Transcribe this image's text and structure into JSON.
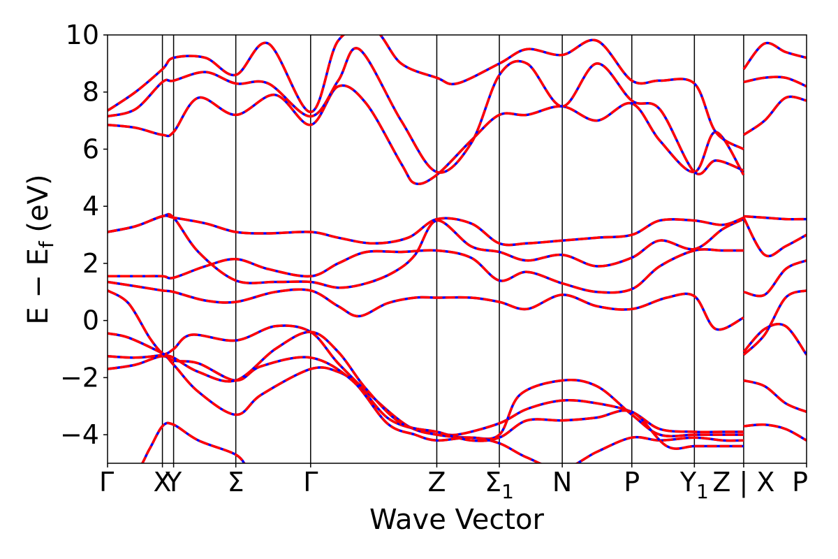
{
  "chart_data": {
    "type": "line",
    "title": "",
    "xlabel": "Wave Vector",
    "ylabel": "E − E",
    "ylabel_sub": "f",
    "ylabel_unit": " (eV)",
    "ylim": [
      -5,
      10
    ],
    "xlim": [
      0,
      1
    ],
    "yticks": [
      -4,
      -2,
      0,
      2,
      4,
      6,
      8,
      10
    ],
    "ytick_labels": [
      "−4",
      "−2",
      "0",
      "2",
      "4",
      "6",
      "8",
      "10"
    ],
    "kpoints": [
      {
        "label": "Γ",
        "sub": "",
        "x": 0.0
      },
      {
        "label": "X",
        "sub": "",
        "x": 0.0785
      },
      {
        "label": "Y",
        "sub": "",
        "x": 0.0945
      },
      {
        "label": "Σ",
        "sub": "",
        "x": 0.1835
      },
      {
        "label": "Γ",
        "sub": "",
        "x": 0.2905
      },
      {
        "label": "Z",
        "sub": "",
        "x": 0.471
      },
      {
        "label": "Σ",
        "sub": "1",
        "x": 0.5605
      },
      {
        "label": "N",
        "sub": "",
        "x": 0.6505
      },
      {
        "label": "P",
        "sub": "",
        "x": 0.75
      },
      {
        "label": "Y",
        "sub": "1",
        "x": 0.8395
      },
      {
        "label": "Z | X",
        "sub": "",
        "x": 0.91
      },
      {
        "label": "P",
        "sub": "",
        "x": 1.0
      }
    ],
    "grid": false,
    "legend": "none",
    "series_colors": {
      "overlay": "#ff0000",
      "underlay": "#0000ff"
    },
    "bands": [
      [
        [
          0,
          -5.6
        ],
        [
          0.04,
          -5.3
        ],
        [
          0.06,
          -4.5
        ],
        [
          0.0785,
          -3.7
        ],
        [
          0.0945,
          -3.65
        ],
        [
          0.13,
          -4.2
        ],
        [
          0.1835,
          -4.7
        ],
        [
          0.2,
          -5.2
        ]
      ],
      [
        [
          0,
          -1.7
        ],
        [
          0.04,
          -1.55
        ],
        [
          0.0785,
          -1.25
        ],
        [
          0.0945,
          -1.55
        ],
        [
          0.13,
          -2.5
        ],
        [
          0.1835,
          -3.3
        ],
        [
          0.22,
          -2.6
        ],
        [
          0.2905,
          -1.7
        ],
        [
          0.33,
          -1.8
        ],
        [
          0.36,
          -2.3
        ],
        [
          0.4,
          -3.4
        ],
        [
          0.44,
          -3.8
        ],
        [
          0.471,
          -3.9
        ],
        [
          0.5,
          -4.0
        ],
        [
          0.5605,
          -3.6
        ],
        [
          0.6,
          -3.1
        ],
        [
          0.6505,
          -2.8
        ],
        [
          0.7,
          -2.9
        ],
        [
          0.75,
          -3.2
        ],
        [
          0.79,
          -3.8
        ],
        [
          0.8395,
          -3.9
        ],
        [
          0.88,
          -3.9
        ],
        [
          0.91,
          -3.9
        ]
      ],
      [
        [
          0,
          -1.25
        ],
        [
          0.04,
          -1.3
        ],
        [
          0.0785,
          -1.2
        ],
        [
          0.0945,
          -1.0
        ],
        [
          0.12,
          -0.5
        ],
        [
          0.1835,
          -0.7
        ],
        [
          0.24,
          -0.2
        ],
        [
          0.2905,
          -0.4
        ],
        [
          0.33,
          -1.5
        ],
        [
          0.38,
          -2.7
        ],
        [
          0.43,
          -3.7
        ],
        [
          0.471,
          -4.0
        ],
        [
          0.52,
          -4.1
        ],
        [
          0.5605,
          -4.0
        ],
        [
          0.59,
          -2.6
        ],
        [
          0.6505,
          -2.1
        ],
        [
          0.7,
          -2.3
        ],
        [
          0.75,
          -3.3
        ],
        [
          0.79,
          -4.0
        ],
        [
          0.8395,
          -4.0
        ],
        [
          0.88,
          -4.0
        ],
        [
          0.91,
          -4.0
        ]
      ],
      [
        [
          0,
          -0.45
        ],
        [
          0.03,
          -0.6
        ],
        [
          0.0785,
          -1.15
        ],
        [
          0.0945,
          -1.4
        ],
        [
          0.13,
          -1.5
        ],
        [
          0.1835,
          -2.1
        ],
        [
          0.22,
          -1.6
        ],
        [
          0.2905,
          -1.3
        ],
        [
          0.35,
          -2.1
        ],
        [
          0.4,
          -3.6
        ],
        [
          0.44,
          -4.0
        ],
        [
          0.471,
          -4.2
        ],
        [
          0.52,
          -4.1
        ],
        [
          0.5605,
          -4.3
        ],
        [
          0.6,
          -4.8
        ],
        [
          0.6505,
          -5.2
        ],
        [
          0.7,
          -4.6
        ],
        [
          0.75,
          -4.1
        ],
        [
          0.79,
          -4.2
        ],
        [
          0.8395,
          -4.1
        ],
        [
          0.88,
          -4.2
        ],
        [
          0.91,
          -4.2
        ]
      ],
      [
        [
          0,
          1.05
        ],
        [
          0.03,
          0.6
        ],
        [
          0.06,
          -0.6
        ],
        [
          0.0785,
          -1.15
        ],
        [
          0.0945,
          -1.3
        ],
        [
          0.13,
          -1.8
        ],
        [
          0.1835,
          -2.1
        ],
        [
          0.24,
          -1.0
        ],
        [
          0.2905,
          -0.4
        ],
        [
          0.33,
          -1.1
        ],
        [
          0.37,
          -2.4
        ],
        [
          0.42,
          -3.6
        ],
        [
          0.471,
          -3.9
        ],
        [
          0.52,
          -4.2
        ],
        [
          0.5605,
          -4.1
        ],
        [
          0.6,
          -3.5
        ],
        [
          0.6505,
          -3.5
        ],
        [
          0.7,
          -3.4
        ],
        [
          0.75,
          -3.2
        ],
        [
          0.8,
          -4.4
        ],
        [
          0.8395,
          -4.4
        ],
        [
          0.88,
          -4.4
        ],
        [
          0.91,
          -4.4
        ]
      ],
      [
        [
          0,
          1.35
        ],
        [
          0.04,
          1.2
        ],
        [
          0.0785,
          1.05
        ],
        [
          0.0945,
          1.0
        ],
        [
          0.14,
          0.7
        ],
        [
          0.1835,
          0.65
        ],
        [
          0.24,
          1.0
        ],
        [
          0.2905,
          1.05
        ],
        [
          0.33,
          0.5
        ],
        [
          0.36,
          0.15
        ],
        [
          0.4,
          0.6
        ],
        [
          0.44,
          0.8
        ],
        [
          0.471,
          0.8
        ],
        [
          0.52,
          0.8
        ],
        [
          0.5605,
          0.65
        ],
        [
          0.6,
          0.4
        ],
        [
          0.6505,
          0.9
        ],
        [
          0.7,
          0.5
        ],
        [
          0.75,
          0.4
        ],
        [
          0.8,
          0.8
        ],
        [
          0.8395,
          0.85
        ],
        [
          0.87,
          -0.3
        ],
        [
          0.91,
          0.1
        ]
      ],
      [
        [
          0,
          1.55
        ],
        [
          0.04,
          1.55
        ],
        [
          0.0785,
          1.55
        ],
        [
          0.0945,
          1.5
        ],
        [
          0.14,
          1.9
        ],
        [
          0.1835,
          2.15
        ],
        [
          0.23,
          1.8
        ],
        [
          0.2905,
          1.55
        ],
        [
          0.33,
          2.0
        ],
        [
          0.37,
          2.4
        ],
        [
          0.42,
          2.4
        ],
        [
          0.471,
          2.45
        ],
        [
          0.52,
          2.2
        ],
        [
          0.5605,
          1.4
        ],
        [
          0.6,
          1.7
        ],
        [
          0.6505,
          1.3
        ],
        [
          0.7,
          1.0
        ],
        [
          0.75,
          1.1
        ],
        [
          0.79,
          1.9
        ],
        [
          0.8395,
          2.45
        ],
        [
          0.88,
          2.45
        ],
        [
          0.91,
          2.45
        ]
      ],
      [
        [
          0,
          3.1
        ],
        [
          0.04,
          3.3
        ],
        [
          0.0785,
          3.65
        ],
        [
          0.0945,
          3.6
        ],
        [
          0.13,
          2.4
        ],
        [
          0.1835,
          1.4
        ],
        [
          0.24,
          1.35
        ],
        [
          0.2905,
          1.35
        ],
        [
          0.33,
          1.15
        ],
        [
          0.37,
          1.3
        ],
        [
          0.41,
          1.7
        ],
        [
          0.44,
          2.3
        ],
        [
          0.471,
          3.5
        ],
        [
          0.52,
          2.6
        ],
        [
          0.5605,
          2.4
        ],
        [
          0.6,
          2.1
        ],
        [
          0.6505,
          2.3
        ],
        [
          0.7,
          1.9
        ],
        [
          0.75,
          2.2
        ],
        [
          0.79,
          2.8
        ],
        [
          0.8395,
          2.5
        ],
        [
          0.88,
          3.2
        ],
        [
          0.91,
          3.55
        ]
      ],
      [
        [
          0,
          3.1
        ],
        [
          0.04,
          3.3
        ],
        [
          0.0785,
          3.65
        ],
        [
          0.0945,
          3.6
        ],
        [
          0.14,
          3.4
        ],
        [
          0.1835,
          3.1
        ],
        [
          0.23,
          3.05
        ],
        [
          0.2905,
          3.1
        ],
        [
          0.33,
          2.9
        ],
        [
          0.38,
          2.7
        ],
        [
          0.43,
          2.9
        ],
        [
          0.471,
          3.55
        ],
        [
          0.52,
          3.4
        ],
        [
          0.5605,
          2.7
        ],
        [
          0.6,
          2.7
        ],
        [
          0.6505,
          2.8
        ],
        [
          0.7,
          2.9
        ],
        [
          0.75,
          3.0
        ],
        [
          0.79,
          3.5
        ],
        [
          0.8395,
          3.5
        ],
        [
          0.88,
          3.35
        ],
        [
          0.91,
          3.6
        ]
      ],
      [
        [
          0,
          6.85
        ],
        [
          0.04,
          6.75
        ],
        [
          0.0785,
          6.5
        ],
        [
          0.0945,
          6.6
        ],
        [
          0.13,
          7.8
        ],
        [
          0.1835,
          7.2
        ],
        [
          0.24,
          7.9
        ],
        [
          0.2905,
          6.85
        ],
        [
          0.33,
          8.2
        ],
        [
          0.37,
          7.6
        ],
        [
          0.42,
          5.5
        ],
        [
          0.44,
          4.8
        ],
        [
          0.471,
          5.1
        ],
        [
          0.52,
          6.3
        ],
        [
          0.5605,
          7.2
        ],
        [
          0.6,
          7.2
        ],
        [
          0.6505,
          7.5
        ],
        [
          0.7,
          7.0
        ],
        [
          0.75,
          7.6
        ],
        [
          0.79,
          6.3
        ],
        [
          0.8395,
          5.2
        ],
        [
          0.87,
          6.6
        ],
        [
          0.91,
          5.1
        ]
      ],
      [
        [
          0,
          7.15
        ],
        [
          0.04,
          7.4
        ],
        [
          0.0785,
          8.35
        ],
        [
          0.0945,
          8.4
        ],
        [
          0.14,
          8.7
        ],
        [
          0.1835,
          8.3
        ],
        [
          0.23,
          8.3
        ],
        [
          0.2905,
          7.15
        ],
        [
          0.33,
          8.4
        ],
        [
          0.36,
          9.5
        ],
        [
          0.42,
          7.0
        ],
        [
          0.471,
          5.2
        ],
        [
          0.52,
          6.2
        ],
        [
          0.5605,
          8.6
        ],
        [
          0.6,
          9.0
        ],
        [
          0.6505,
          7.5
        ],
        [
          0.7,
          9.0
        ],
        [
          0.75,
          7.7
        ],
        [
          0.79,
          7.4
        ],
        [
          0.8395,
          5.2
        ],
        [
          0.87,
          5.6
        ],
        [
          0.91,
          5.25
        ]
      ],
      [
        [
          0,
          7.35
        ],
        [
          0.04,
          8.0
        ],
        [
          0.0785,
          8.8
        ],
        [
          0.0945,
          9.2
        ],
        [
          0.14,
          9.2
        ],
        [
          0.1835,
          8.6
        ],
        [
          0.23,
          9.7
        ],
        [
          0.2905,
          7.3
        ],
        [
          0.33,
          9.8
        ],
        [
          0.38,
          10.2
        ],
        [
          0.42,
          9.0
        ],
        [
          0.471,
          8.5
        ],
        [
          0.5,
          8.3
        ],
        [
          0.5605,
          9.0
        ],
        [
          0.6,
          9.5
        ],
        [
          0.6505,
          9.3
        ],
        [
          0.7,
          9.8
        ],
        [
          0.75,
          8.4
        ],
        [
          0.79,
          8.4
        ],
        [
          0.8395,
          8.3
        ],
        [
          0.87,
          6.6
        ],
        [
          0.91,
          6.0
        ]
      ],
      [
        [
          0.91,
          -1.2
        ],
        [
          0.94,
          -0.5
        ],
        [
          0.97,
          0.8
        ],
        [
          1.0,
          1.05
        ]
      ],
      [
        [
          0.91,
          -1.1
        ],
        [
          0.94,
          -0.3
        ],
        [
          0.97,
          -0.2
        ],
        [
          1.0,
          -1.2
        ]
      ],
      [
        [
          0.91,
          3.65
        ],
        [
          0.94,
          3.6
        ],
        [
          0.97,
          3.55
        ],
        [
          1.0,
          3.55
        ]
      ],
      [
        [
          0.91,
          3.6
        ],
        [
          0.94,
          2.3
        ],
        [
          0.97,
          2.6
        ],
        [
          1.0,
          3.0
        ]
      ],
      [
        [
          0.91,
          1.0
        ],
        [
          0.94,
          0.9
        ],
        [
          0.97,
          1.8
        ],
        [
          1.0,
          2.1
        ]
      ],
      [
        [
          0.91,
          6.5
        ],
        [
          0.94,
          7.0
        ],
        [
          0.97,
          7.8
        ],
        [
          1.0,
          7.7
        ]
      ],
      [
        [
          0.91,
          8.35
        ],
        [
          0.94,
          8.5
        ],
        [
          0.97,
          8.5
        ],
        [
          1.0,
          8.2
        ]
      ],
      [
        [
          0.91,
          8.8
        ],
        [
          0.94,
          9.7
        ],
        [
          0.97,
          9.4
        ],
        [
          1.0,
          9.2
        ]
      ],
      [
        [
          0.91,
          -2.1
        ],
        [
          0.94,
          -2.3
        ],
        [
          0.97,
          -2.9
        ],
        [
          1.0,
          -3.2
        ]
      ],
      [
        [
          0.91,
          -3.7
        ],
        [
          0.94,
          -3.65
        ],
        [
          0.97,
          -3.8
        ],
        [
          1.0,
          -4.2
        ]
      ]
    ]
  }
}
